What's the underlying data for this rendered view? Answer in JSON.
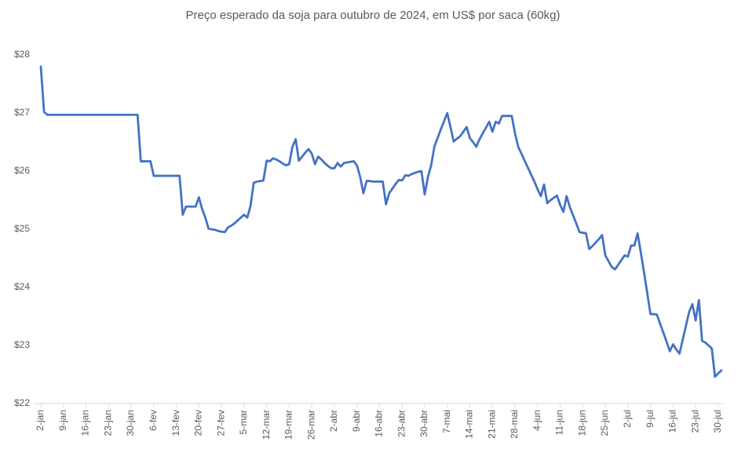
{
  "chart_data": {
    "type": "line",
    "title": "Preço esperado da soja para outubro de 2024, em US$ por saca (60kg)",
    "categories": [
      "2-jan",
      null,
      null,
      null,
      null,
      null,
      null,
      "9-jan",
      null,
      null,
      null,
      null,
      null,
      null,
      "16-jan",
      null,
      null,
      null,
      null,
      null,
      null,
      "23-jan",
      null,
      null,
      null,
      null,
      null,
      null,
      "30-jan",
      null,
      null,
      null,
      null,
      null,
      null,
      "6-fev",
      null,
      null,
      null,
      null,
      null,
      null,
      "13-fev",
      null,
      null,
      null,
      null,
      null,
      null,
      "20-fev",
      null,
      null,
      null,
      null,
      null,
      null,
      "27-fev",
      null,
      null,
      null,
      null,
      null,
      null,
      "5-mar",
      null,
      null,
      null,
      null,
      null,
      null,
      "12-mar",
      null,
      null,
      null,
      null,
      null,
      null,
      "19-mar",
      null,
      null,
      null,
      null,
      null,
      null,
      "26-mar",
      null,
      null,
      null,
      null,
      null,
      null,
      "2-abr",
      null,
      null,
      null,
      null,
      null,
      null,
      "9-abr",
      null,
      null,
      null,
      null,
      null,
      null,
      "16-abr",
      null,
      null,
      null,
      null,
      null,
      null,
      "23-abr",
      null,
      null,
      null,
      null,
      null,
      null,
      "30-abr",
      null,
      null,
      null,
      null,
      null,
      null,
      "7-mai",
      null,
      null,
      null,
      null,
      null,
      null,
      "14-mai",
      null,
      null,
      null,
      null,
      null,
      null,
      "21-mai",
      null,
      null,
      null,
      null,
      null,
      null,
      "28-mai",
      null,
      null,
      null,
      null,
      null,
      null,
      "4-jun",
      null,
      null,
      null,
      null,
      null,
      null,
      "11-jun",
      null,
      null,
      null,
      null,
      null,
      null,
      "18-jun",
      null,
      null,
      null,
      null,
      null,
      null,
      "25-jun",
      null,
      null,
      null,
      null,
      null,
      null,
      "2-jul",
      null,
      null,
      null,
      null,
      null,
      null,
      "9-jul",
      null,
      null,
      null,
      null,
      null,
      null,
      "16-jul",
      null,
      null,
      null,
      null,
      null,
      null,
      "23-jul",
      null,
      null,
      null,
      null,
      null,
      null,
      "30-jul",
      null
    ],
    "values": [
      27.8,
      27.02,
      26.97,
      26.97,
      26.97,
      26.97,
      26.97,
      26.97,
      26.97,
      26.97,
      26.97,
      26.97,
      26.97,
      26.97,
      26.97,
      26.97,
      26.97,
      26.97,
      26.97,
      26.97,
      26.97,
      26.97,
      26.97,
      26.97,
      26.97,
      26.97,
      26.97,
      26.97,
      26.97,
      26.97,
      26.97,
      26.17,
      26.17,
      26.17,
      26.17,
      25.92,
      25.92,
      25.92,
      25.92,
      25.92,
      25.92,
      25.92,
      25.92,
      25.92,
      25.25,
      25.39,
      25.39,
      25.39,
      25.39,
      25.55,
      25.35,
      25.2,
      25.01,
      25.0,
      24.99,
      24.97,
      24.96,
      24.95,
      25.03,
      25.06,
      25.1,
      25.15,
      25.2,
      25.25,
      25.2,
      25.4,
      25.8,
      25.82,
      25.83,
      25.84,
      26.18,
      26.17,
      26.22,
      26.2,
      26.17,
      26.13,
      26.1,
      26.12,
      26.42,
      26.55,
      26.18,
      26.25,
      26.32,
      26.38,
      26.3,
      26.12,
      26.25,
      26.2,
      26.14,
      26.09,
      26.05,
      26.05,
      26.14,
      26.08,
      26.14,
      26.15,
      26.16,
      26.17,
      26.1,
      25.9,
      25.62,
      25.83,
      25.83,
      25.82,
      25.82,
      25.82,
      25.82,
      25.43,
      25.62,
      25.7,
      25.78,
      25.85,
      25.84,
      25.93,
      25.92,
      25.95,
      25.97,
      25.99,
      26.0,
      25.6,
      25.9,
      26.1,
      26.42,
      26.57,
      26.72,
      26.86,
      27.0,
      26.76,
      26.51,
      26.56,
      26.6,
      26.68,
      26.76,
      26.57,
      26.5,
      26.42,
      26.55,
      26.65,
      26.75,
      26.85,
      26.68,
      26.85,
      26.82,
      26.95,
      26.95,
      26.95,
      26.95,
      26.65,
      26.42,
      26.3,
      26.18,
      26.06,
      25.94,
      25.82,
      25.69,
      25.57,
      25.77,
      25.45,
      25.5,
      25.54,
      25.58,
      25.42,
      25.3,
      25.57,
      25.38,
      25.24,
      25.1,
      24.95,
      24.94,
      24.93,
      24.66,
      24.71,
      24.77,
      24.83,
      24.9,
      24.55,
      24.45,
      24.35,
      24.31,
      24.39,
      24.47,
      24.55,
      24.53,
      24.72,
      24.72,
      24.93,
      24.6,
      24.26,
      23.9,
      23.54,
      23.54,
      23.53,
      23.37,
      23.22,
      23.06,
      22.9,
      23.02,
      22.93,
      22.86,
      23.1,
      23.34,
      23.58,
      23.71,
      23.43,
      23.78,
      23.08,
      23.05,
      23.0,
      22.95,
      22.46,
      22.52,
      22.57
    ],
    "color": "#4472c4",
    "ylim": [
      22,
      28
    ],
    "yticks": [
      {
        "value": 22,
        "label": "$22"
      },
      {
        "value": 23,
        "label": "$23"
      },
      {
        "value": 24,
        "label": "$24"
      },
      {
        "value": 25,
        "label": "$25"
      },
      {
        "value": 26,
        "label": "$26"
      },
      {
        "value": 27,
        "label": "$27"
      },
      {
        "value": 28,
        "label": "$28"
      }
    ],
    "grid": false
  }
}
